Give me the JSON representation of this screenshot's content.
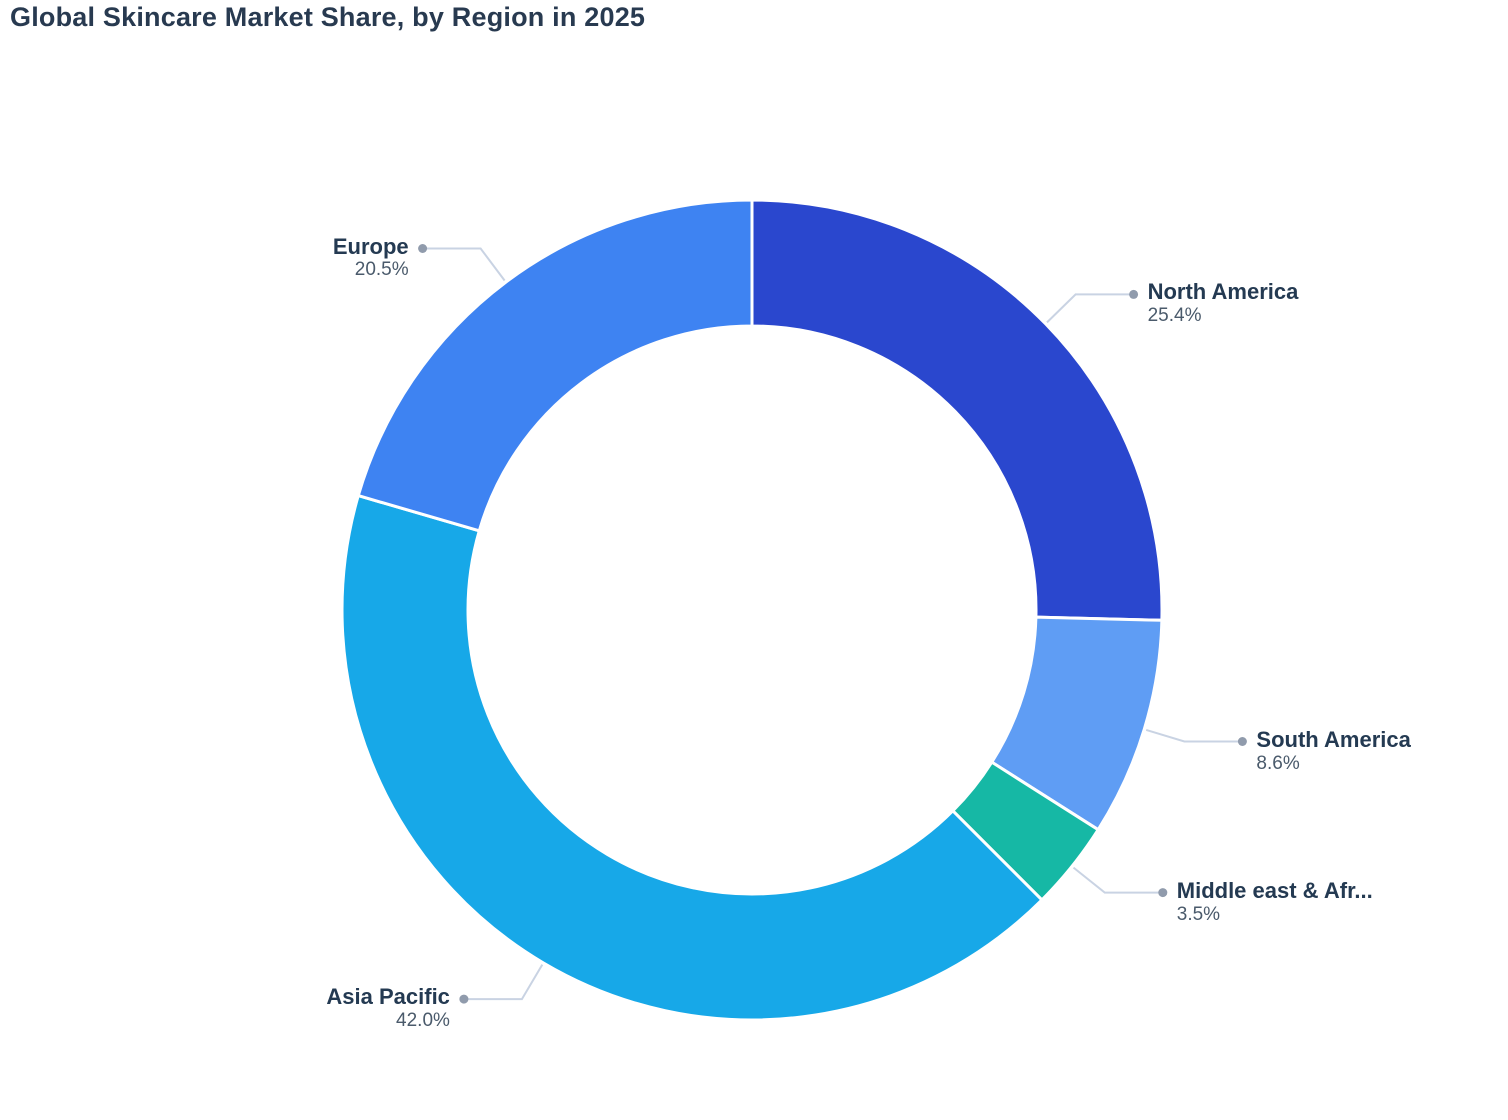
{
  "title": "Global Skincare Market Share, by Region in 2025",
  "chart_data": {
    "type": "pie",
    "subtype": "donut",
    "title": "Global Skincare Market Share, by Region in 2025",
    "unit": "%",
    "legend_position": "none",
    "label_style": "outside-with-leader-lines",
    "start_angle_deg": -90,
    "direction": "clockwise",
    "categories": [
      "North America",
      "South America",
      "Middle east & Afr...",
      "Asia Pacific",
      "Europe"
    ],
    "values": [
      25.4,
      8.6,
      3.5,
      42.0,
      20.5
    ],
    "slices": [
      {
        "label": "North America",
        "pct_label": "25.4%",
        "value": 25.4,
        "color": "#2a47ce"
      },
      {
        "label": "South America",
        "pct_label": "8.6%",
        "value": 8.6,
        "color": "#5f9df4"
      },
      {
        "label": "Middle east & Afr...",
        "pct_label": "3.5%",
        "value": 3.5,
        "color": "#16b8a5"
      },
      {
        "label": "Asia Pacific",
        "pct_label": "42.0%",
        "value": 42.0,
        "color": "#17a8e8"
      },
      {
        "label": "Europe",
        "pct_label": "20.5%",
        "value": 20.5,
        "color": "#3e83f2"
      }
    ]
  },
  "style": {
    "background": "#ffffff",
    "title_color": "#283a50",
    "label_color": "#243a52",
    "pct_color": "#4a5a6b",
    "leader_line_color": "#c9d3e3",
    "leader_dot_color": "#909bac",
    "slice_separator_color": "#ffffff"
  }
}
